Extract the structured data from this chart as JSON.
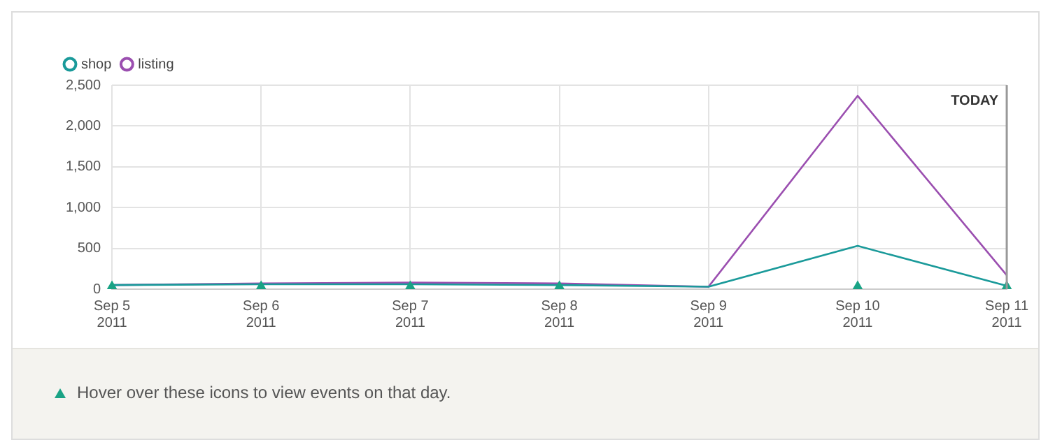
{
  "chart_data": {
    "type": "line",
    "categories": [
      "Sep 5 2011",
      "Sep 6 2011",
      "Sep 7 2011",
      "Sep 8 2011",
      "Sep 9 2011",
      "Sep 10 2011",
      "Sep 11 2011"
    ],
    "series": [
      {
        "name": "shop",
        "color": "#1a9a9a",
        "values": [
          50,
          60,
          60,
          50,
          30,
          530,
          40
        ]
      },
      {
        "name": "listing",
        "color": "#9b4fb0",
        "values": [
          50,
          70,
          80,
          70,
          30,
          2370,
          170
        ]
      },
      {
        "type": "scatter",
        "color": "#1aa385",
        "marker": "triangle",
        "values": [
          0,
          0,
          0,
          0,
          null,
          0,
          0
        ]
      }
    ],
    "ylim": [
      0,
      2500
    ],
    "yticks": [
      0,
      {
        "value": 500,
        "label": "500"
      },
      {
        "value": 1000,
        "label": "1,000"
      },
      {
        "value": 1500,
        "label": "1,500"
      },
      {
        "value": 2000,
        "label": "2,000"
      },
      {
        "value": 2500,
        "label": "2,500"
      }
    ],
    "grid": true,
    "legend": "top left",
    "marker": "none",
    "ref_lines": [
      {
        "axis": "x",
        "value": "Sep 11 2011",
        "label": "TODAY",
        "color": "#999999"
      }
    ],
    "annotations": [
      "Hover over these icons to view events on that day."
    ]
  }
}
